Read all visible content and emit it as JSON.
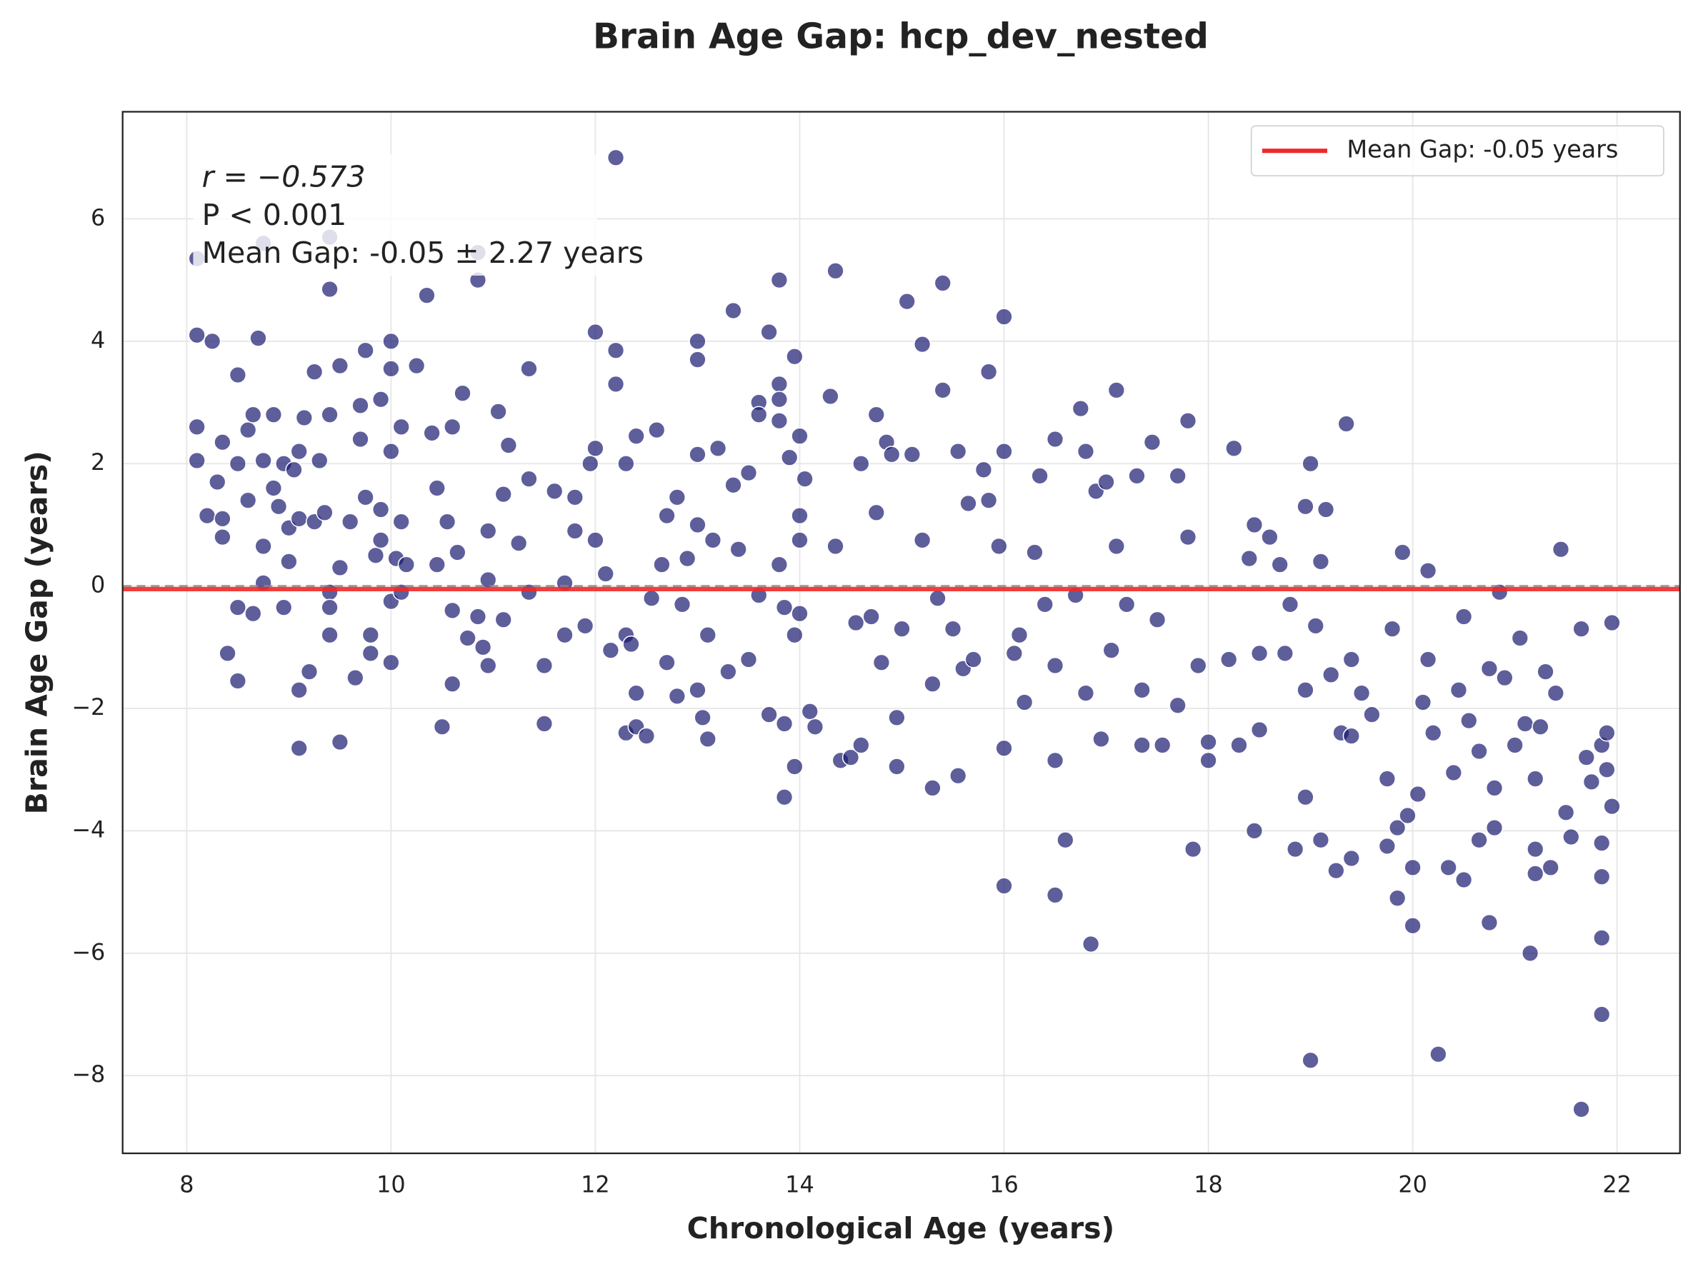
{
  "chart_data": {
    "type": "scatter",
    "title": "Brain Age Gap: hcp_dev_nested",
    "x_label": "Chronological Age (years)",
    "y_label": "Brain Age Gap (years)",
    "xlim": [
      7.373,
      22.616
    ],
    "ylim": [
      -9.27,
      7.75
    ],
    "xticks": [
      8,
      10,
      12,
      14,
      16,
      18,
      20,
      22
    ],
    "yticks": [
      {
        "value": -8,
        "label": "−8"
      },
      {
        "value": -6,
        "label": "−6"
      },
      {
        "value": -4,
        "label": "−4"
      },
      {
        "value": -2,
        "label": "−2"
      },
      0,
      2,
      4,
      6
    ],
    "grid": true,
    "color": "#191970",
    "legend": "upper right",
    "mean_line": {
      "name": "Mean Gap: -0.05 years",
      "value": -0.05,
      "color": "#f02828"
    },
    "reference_line": {
      "value": 0,
      "color": "#888888"
    },
    "annotation": [
      "r = −0.573",
      "P < 0.001",
      "Mean Gap: -0.05 ± 2.27 years"
    ],
    "x": [
      8.1,
      8.1,
      8.1,
      8.1,
      8.25,
      8.2,
      8.3,
      8.35,
      8.35,
      8.35,
      8.4,
      8.5,
      8.5,
      8.5,
      8.5,
      8.6,
      8.6,
      8.65,
      8.65,
      8.7,
      8.75,
      8.75,
      8.75,
      8.75,
      8.85,
      8.85,
      8.9,
      8.95,
      8.95,
      9.0,
      9.0,
      9.05,
      9.1,
      9.1,
      9.1,
      9.1,
      9.15,
      9.2,
      9.25,
      9.25,
      9.3,
      9.35,
      9.4,
      9.4,
      9.4,
      9.4,
      9.4,
      9.4,
      9.5,
      9.5,
      9.5,
      9.6,
      9.65,
      9.7,
      9.7,
      9.75,
      9.75,
      9.8,
      9.8,
      9.85,
      9.9,
      9.9,
      9.9,
      10.0,
      10.0,
      10.0,
      10.0,
      10.0,
      10.05,
      10.1,
      10.1,
      10.1,
      10.15,
      10.25,
      10.35,
      10.4,
      10.45,
      10.45,
      10.5,
      10.55,
      10.6,
      10.6,
      10.6,
      10.65,
      10.7,
      10.75,
      10.85,
      10.85,
      10.85,
      10.9,
      10.95,
      10.95,
      10.95,
      11.05,
      11.1,
      11.1,
      11.15,
      11.25,
      11.35,
      11.35,
      11.35,
      11.5,
      11.5,
      11.6,
      11.7,
      11.7,
      11.8,
      11.8,
      11.9,
      11.95,
      12.0,
      12.0,
      12.0,
      12.1,
      12.15,
      12.2,
      12.2,
      12.2,
      12.3,
      12.3,
      12.3,
      12.35,
      12.4,
      12.4,
      12.4,
      12.5,
      12.55,
      12.6,
      12.65,
      12.7,
      12.7,
      12.8,
      12.8,
      12.85,
      12.9,
      13.0,
      13.0,
      13.0,
      13.0,
      13.0,
      13.05,
      13.1,
      13.1,
      13.15,
      13.2,
      13.3,
      13.35,
      13.35,
      13.4,
      13.5,
      13.5,
      13.6,
      13.6,
      13.6,
      13.7,
      13.7,
      13.8,
      13.8,
      13.8,
      13.8,
      13.8,
      13.85,
      13.85,
      13.85,
      13.9,
      13.95,
      13.95,
      13.95,
      14.0,
      14.0,
      14.0,
      14.0,
      14.05,
      14.1,
      14.15,
      14.3,
      14.35,
      14.35,
      14.4,
      14.5,
      14.55,
      14.6,
      14.6,
      14.7,
      14.75,
      14.75,
      14.8,
      14.85,
      14.9,
      14.95,
      14.95,
      15.0,
      15.05,
      15.1,
      15.2,
      15.2,
      15.3,
      15.3,
      15.35,
      15.4,
      15.4,
      15.5,
      15.55,
      15.55,
      15.6,
      15.65,
      15.7,
      15.8,
      15.85,
      15.85,
      15.95,
      16.0,
      16.0,
      16.0,
      16.0,
      16.1,
      16.15,
      16.2,
      16.3,
      16.35,
      16.4,
      16.5,
      16.5,
      16.5,
      16.5,
      16.6,
      16.7,
      16.75,
      16.8,
      16.8,
      16.85,
      16.9,
      16.95,
      17.0,
      17.05,
      17.1,
      17.1,
      17.2,
      17.3,
      17.35,
      17.35,
      17.45,
      17.5,
      17.55,
      17.7,
      17.7,
      17.8,
      17.8,
      17.85,
      17.9,
      18.0,
      18.0,
      18.2,
      18.25,
      18.3,
      18.4,
      18.45,
      18.45,
      18.5,
      18.5,
      18.6,
      18.7,
      18.75,
      18.8,
      18.85,
      18.95,
      18.95,
      18.95,
      19.0,
      19.0,
      19.05,
      19.1,
      19.1,
      19.15,
      19.2,
      19.25,
      19.3,
      19.35,
      19.4,
      19.4,
      19.4,
      19.5,
      19.6,
      19.75,
      19.75,
      19.8,
      19.85,
      19.85,
      19.9,
      19.95,
      20.0,
      20.0,
      20.05,
      20.1,
      20.15,
      20.15,
      20.2,
      20.25,
      20.35,
      20.4,
      20.45,
      20.5,
      20.5,
      20.55,
      20.65,
      20.65,
      20.75,
      20.75,
      20.8,
      20.8,
      20.85,
      20.9,
      21.0,
      21.05,
      21.1,
      21.15,
      21.2,
      21.2,
      21.2,
      21.25,
      21.3,
      21.35,
      21.4,
      21.45,
      21.5,
      21.55,
      21.65,
      21.65,
      21.7,
      21.75,
      21.85,
      21.85,
      21.85,
      21.85,
      21.85,
      21.9,
      21.9,
      21.95,
      21.95
    ],
    "values": [
      5.35,
      4.1,
      2.6,
      2.05,
      4.0,
      1.15,
      1.7,
      2.35,
      1.1,
      0.8,
      -1.1,
      3.45,
      2.0,
      -0.35,
      -1.55,
      2.55,
      1.4,
      2.8,
      -0.45,
      4.05,
      5.6,
      2.05,
      0.65,
      0.05,
      2.8,
      1.6,
      1.3,
      2.0,
      -0.35,
      0.95,
      0.4,
      1.9,
      2.2,
      -1.7,
      -2.65,
      1.1,
      2.75,
      -1.4,
      3.5,
      1.05,
      2.05,
      1.2,
      5.7,
      4.85,
      2.8,
      -0.1,
      -0.35,
      -0.8,
      3.6,
      -2.55,
      0.3,
      1.05,
      -1.5,
      2.95,
      2.4,
      3.85,
      1.45,
      -0.8,
      -1.1,
      0.5,
      3.05,
      1.25,
      0.75,
      3.55,
      4.0,
      2.2,
      -1.25,
      -0.25,
      0.45,
      2.6,
      1.05,
      -0.1,
      0.35,
      3.6,
      4.75,
      2.5,
      1.6,
      0.35,
      -2.3,
      1.05,
      2.6,
      -1.6,
      -0.4,
      0.55,
      3.15,
      -0.85,
      5.45,
      5.0,
      -0.5,
      -1.0,
      -1.3,
      0.9,
      0.1,
      2.85,
      1.5,
      -0.55,
      2.3,
      0.7,
      3.55,
      1.75,
      -0.1,
      -2.25,
      -1.3,
      1.55,
      -0.8,
      0.05,
      0.9,
      1.45,
      -0.65,
      2.0,
      4.15,
      2.25,
      0.75,
      0.2,
      -1.05,
      7.0,
      3.85,
      3.3,
      2.0,
      -2.4,
      -0.8,
      -0.95,
      2.45,
      -1.75,
      -2.3,
      -2.45,
      -0.2,
      2.55,
      0.35,
      1.15,
      -1.25,
      1.45,
      -1.8,
      -0.3,
      0.45,
      4.0,
      3.7,
      2.15,
      1.0,
      -1.7,
      -2.15,
      -0.8,
      -2.5,
      0.75,
      2.25,
      -1.4,
      4.5,
      1.65,
      0.6,
      1.85,
      -1.2,
      3.0,
      2.8,
      -0.15,
      4.15,
      -2.1,
      5.0,
      3.3,
      3.05,
      2.7,
      0.35,
      -0.35,
      -2.25,
      -3.45,
      2.1,
      3.75,
      -2.95,
      -0.8,
      2.45,
      1.15,
      0.75,
      -0.45,
      1.75,
      -2.05,
      -2.3,
      3.1,
      5.15,
      0.65,
      -2.85,
      -2.8,
      -0.6,
      -2.6,
      2.0,
      -0.5,
      2.8,
      1.2,
      -1.25,
      2.35,
      2.15,
      -2.15,
      -2.95,
      -0.7,
      4.65,
      2.15,
      3.95,
      0.75,
      -3.3,
      -1.6,
      -0.2,
      4.95,
      3.2,
      -0.7,
      2.2,
      -3.1,
      -1.35,
      1.35,
      -1.2,
      1.9,
      3.5,
      1.4,
      0.65,
      4.4,
      2.2,
      -2.65,
      -4.9,
      -1.1,
      -0.8,
      -1.9,
      0.55,
      1.8,
      -0.3,
      2.4,
      -1.3,
      -2.85,
      -5.05,
      -4.15,
      -0.15,
      2.9,
      2.2,
      -1.75,
      -5.85,
      1.55,
      -2.5,
      1.7,
      -1.05,
      3.2,
      0.65,
      -0.3,
      1.8,
      -2.6,
      -1.7,
      2.35,
      -0.55,
      -2.6,
      1.8,
      -1.95,
      2.7,
      0.8,
      -4.3,
      -1.3,
      -2.55,
      -2.85,
      -1.2,
      2.25,
      -2.6,
      0.45,
      1.0,
      -4.0,
      -2.35,
      -1.1,
      0.8,
      0.35,
      -1.1,
      -0.3,
      -4.3,
      1.3,
      -3.45,
      -1.7,
      2.0,
      -7.75,
      -0.65,
      0.4,
      -4.15,
      1.25,
      -1.45,
      -4.65,
      -2.4,
      2.65,
      -2.45,
      -4.45,
      -1.2,
      -1.75,
      -2.1,
      -3.15,
      -4.25,
      -0.7,
      -3.95,
      -5.1,
      0.55,
      -3.75,
      -5.55,
      -4.6,
      -3.4,
      -1.9,
      0.25,
      -1.2,
      -2.4,
      -7.65,
      -4.6,
      -3.05,
      -1.7,
      -4.8,
      -0.5,
      -2.2,
      -4.15,
      -2.7,
      -5.5,
      -1.35,
      -3.95,
      -3.3,
      -0.1,
      -1.5,
      -2.6,
      -0.85,
      -2.25,
      -6.0,
      -4.3,
      -3.15,
      -4.7,
      -2.3,
      -1.4,
      -4.6,
      -1.75,
      0.6,
      -3.7,
      -4.1,
      -0.7,
      -8.55,
      -2.8,
      -3.2,
      -7.0,
      -5.75,
      -4.75,
      -4.2,
      -2.6,
      -3.0,
      -2.4,
      -3.6,
      -0.6
    ]
  }
}
